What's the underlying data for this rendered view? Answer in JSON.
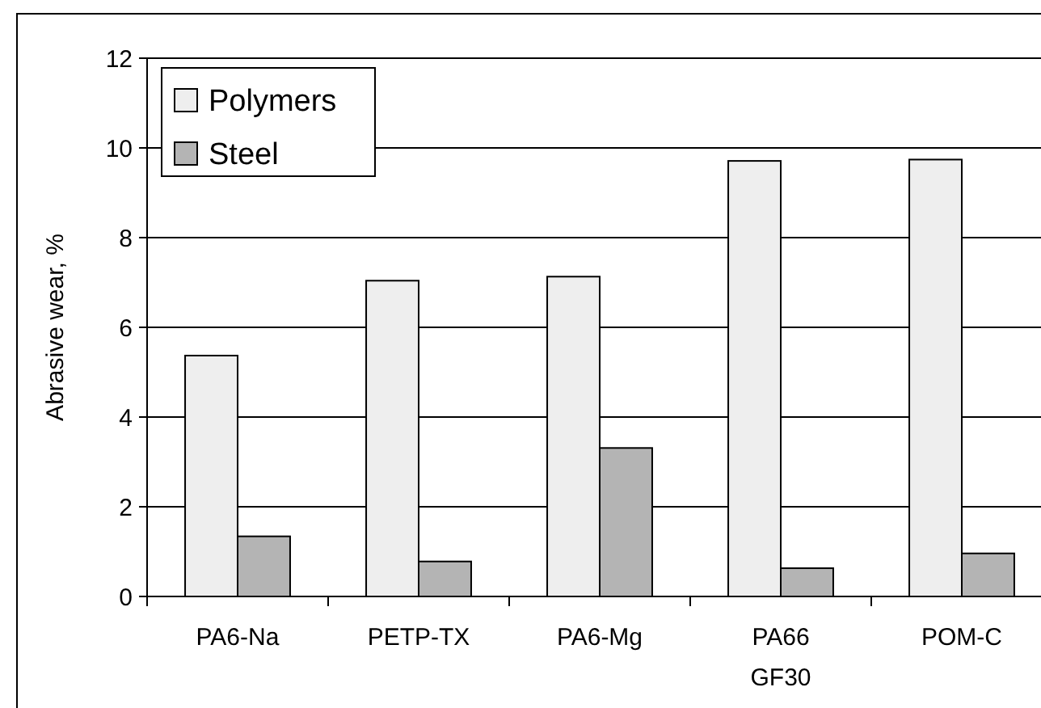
{
  "chart_data": {
    "type": "bar",
    "ylabel": "Abrasive wear, %",
    "categories": [
      "PA6-Na",
      "PETP-TX",
      "PA6-Mg",
      "PA66\nGF30",
      "POM-C"
    ],
    "series": [
      {
        "name": "Polymers",
        "color": "#eeeeee",
        "values": [
          5.37,
          7.04,
          7.13,
          9.71,
          9.74
        ]
      },
      {
        "name": "Steel",
        "color": "#b4b4b4",
        "values": [
          1.34,
          0.78,
          3.31,
          0.63,
          0.96
        ]
      }
    ],
    "ylim": [
      0,
      12
    ],
    "yticks": [
      0,
      2,
      4,
      6,
      8,
      10,
      12
    ],
    "grid": "y",
    "legend": "top left"
  }
}
